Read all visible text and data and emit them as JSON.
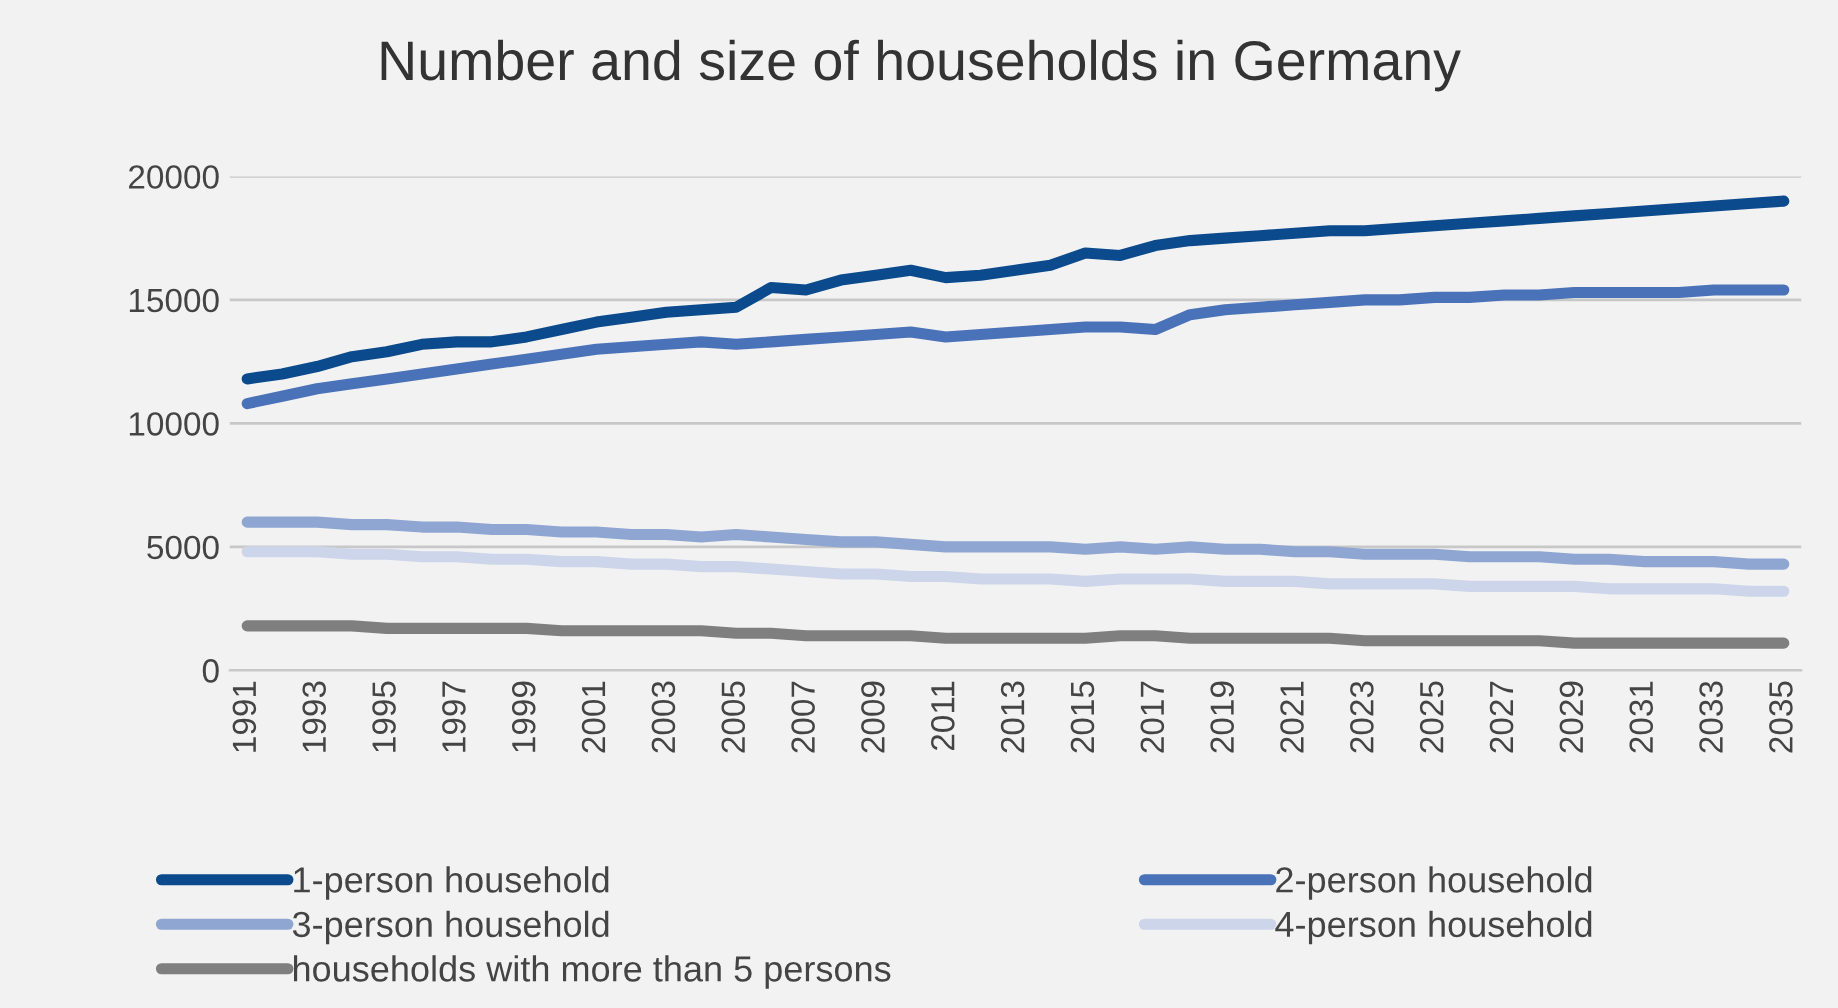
{
  "chart_data": {
    "type": "line",
    "title": "Number and size of households in Germany",
    "x": [
      1991,
      1992,
      1993,
      1994,
      1995,
      1996,
      1997,
      1998,
      1999,
      2000,
      2001,
      2002,
      2003,
      2004,
      2005,
      2006,
      2007,
      2008,
      2009,
      2010,
      2011,
      2012,
      2013,
      2014,
      2015,
      2016,
      2017,
      2018,
      2019,
      2020,
      2021,
      2022,
      2023,
      2024,
      2025,
      2026,
      2027,
      2028,
      2029,
      2030,
      2031,
      2032,
      2033,
      2034,
      2035
    ],
    "series": [
      {
        "name": "1-person household",
        "color": "#0b4a8c",
        "values": [
          11800,
          12000,
          12300,
          12700,
          12900,
          13200,
          13300,
          13300,
          13500,
          13800,
          14100,
          14300,
          14500,
          14600,
          14700,
          15500,
          15400,
          15800,
          16000,
          16200,
          15900,
          16000,
          16200,
          16400,
          16900,
          16800,
          17200,
          17400,
          17500,
          17600,
          17700,
          17800,
          17800,
          17900,
          18000,
          18100,
          18200,
          18300,
          18400,
          18500,
          18600,
          18700,
          18800,
          18900,
          19000
        ]
      },
      {
        "name": "2-person household",
        "color": "#4a72b8",
        "values": [
          10800,
          11100,
          11400,
          11600,
          11800,
          12000,
          12200,
          12400,
          12600,
          12800,
          13000,
          13100,
          13200,
          13300,
          13200,
          13300,
          13400,
          13500,
          13600,
          13700,
          13500,
          13600,
          13700,
          13800,
          13900,
          13900,
          13800,
          14400,
          14600,
          14700,
          14800,
          14900,
          15000,
          15000,
          15100,
          15100,
          15200,
          15200,
          15300,
          15300,
          15300,
          15300,
          15400,
          15400,
          15400
        ]
      },
      {
        "name": "3-person household",
        "color": "#8fa6d2",
        "values": [
          6000,
          6000,
          6000,
          5900,
          5900,
          5800,
          5800,
          5700,
          5700,
          5600,
          5600,
          5500,
          5500,
          5400,
          5500,
          5400,
          5300,
          5200,
          5200,
          5100,
          5000,
          5000,
          5000,
          5000,
          4900,
          5000,
          4900,
          5000,
          4900,
          4900,
          4800,
          4800,
          4700,
          4700,
          4700,
          4600,
          4600,
          4600,
          4500,
          4500,
          4400,
          4400,
          4400,
          4300,
          4300
        ]
      },
      {
        "name": "4-person household",
        "color": "#cdd5ea",
        "values": [
          4800,
          4800,
          4800,
          4700,
          4700,
          4600,
          4600,
          4500,
          4500,
          4400,
          4400,
          4300,
          4300,
          4200,
          4200,
          4100,
          4000,
          3900,
          3900,
          3800,
          3800,
          3700,
          3700,
          3700,
          3600,
          3700,
          3700,
          3700,
          3600,
          3600,
          3600,
          3500,
          3500,
          3500,
          3500,
          3400,
          3400,
          3400,
          3400,
          3300,
          3300,
          3300,
          3300,
          3200,
          3200
        ]
      },
      {
        "name": "households with more than 5 persons",
        "color": "#7f7f7f",
        "values": [
          1800,
          1800,
          1800,
          1800,
          1700,
          1700,
          1700,
          1700,
          1700,
          1600,
          1600,
          1600,
          1600,
          1600,
          1500,
          1500,
          1400,
          1400,
          1400,
          1400,
          1300,
          1300,
          1300,
          1300,
          1300,
          1400,
          1400,
          1300,
          1300,
          1300,
          1300,
          1300,
          1200,
          1200,
          1200,
          1200,
          1200,
          1200,
          1100,
          1100,
          1100,
          1100,
          1100,
          1100,
          1100
        ]
      }
    ],
    "xlim": [
      1990.5,
      2035.5
    ],
    "xticks": [
      1991,
      1993,
      1995,
      1997,
      1999,
      2001,
      2003,
      2005,
      2007,
      2009,
      2011,
      2013,
      2015,
      2017,
      2019,
      2021,
      2023,
      2025,
      2027,
      2029,
      2031,
      2033,
      2035
    ],
    "ylim": [
      0,
      20000
    ],
    "yticks": [
      0,
      5000,
      10000,
      15000,
      20000
    ],
    "grid": "y",
    "legend": "bottom",
    "marker": "none",
    "line_style": "solid"
  }
}
